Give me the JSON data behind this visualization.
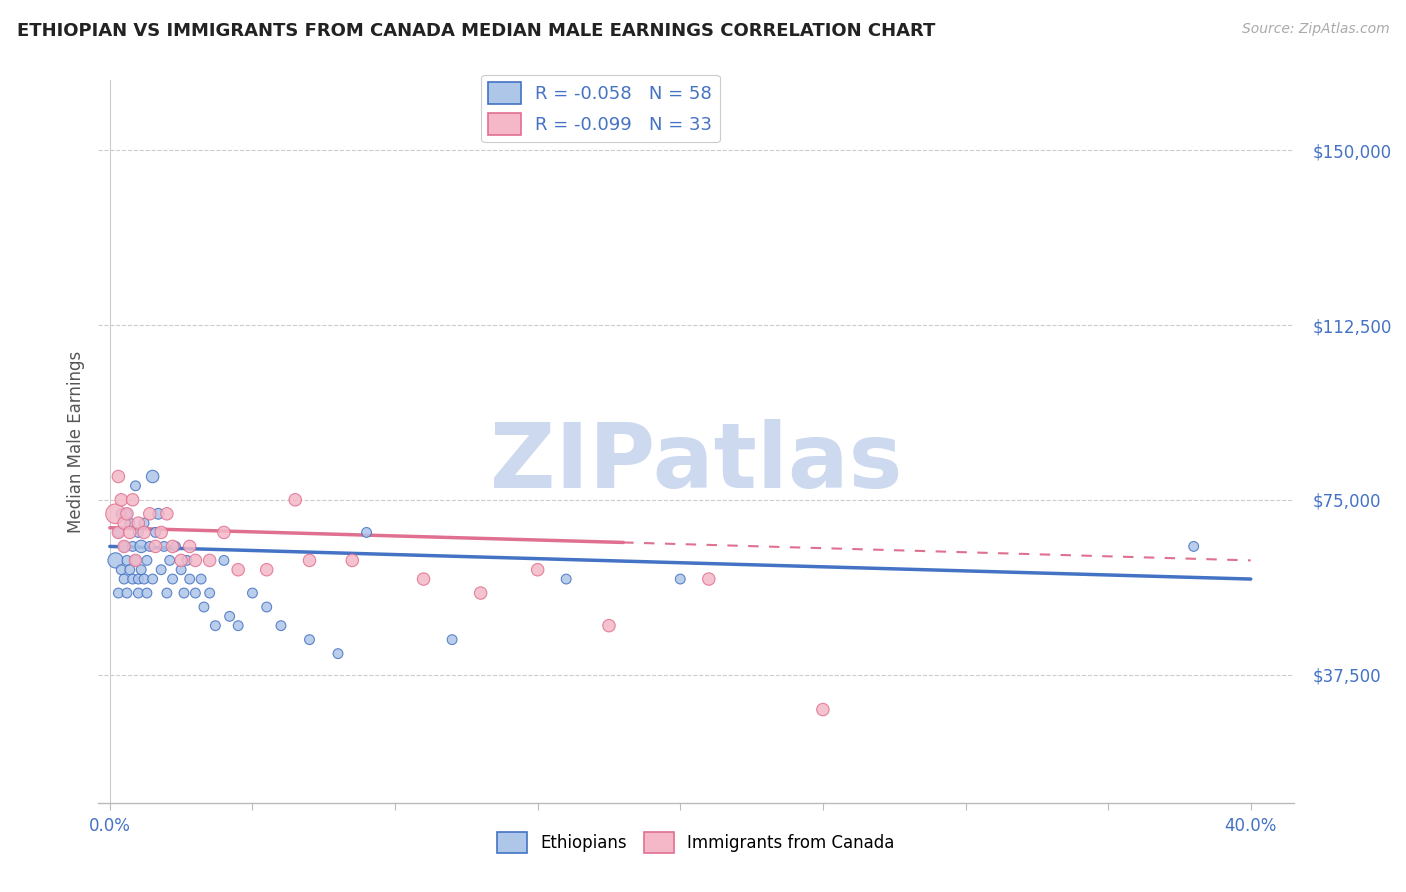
{
  "title": "ETHIOPIAN VS IMMIGRANTS FROM CANADA MEDIAN MALE EARNINGS CORRELATION CHART",
  "source": "Source: ZipAtlas.com",
  "ylabel": "Median Male Earnings",
  "ytick_labels": [
    "$37,500",
    "$75,000",
    "$112,500",
    "$150,000"
  ],
  "ytick_values": [
    37500,
    75000,
    112500,
    150000
  ],
  "ylim": [
    10000,
    165000
  ],
  "xlim": [
    -0.004,
    0.415
  ],
  "r1": "-0.058",
  "n1": "58",
  "r2": "-0.099",
  "n2": "33",
  "legend1_face": "#aec6e8",
  "legend1_edge": "#4472c4",
  "legend2_face": "#f4b8c8",
  "legend2_edge": "#e07090",
  "line1_color": "#4472c4",
  "line2_color": "#e07090",
  "title_color": "#222222",
  "axis_label_color": "#4472c4",
  "watermark": "ZIPatlas",
  "watermark_color": "#ccd9ef",
  "ethiopians_x": [
    0.002,
    0.003,
    0.003,
    0.004,
    0.004,
    0.005,
    0.005,
    0.006,
    0.006,
    0.006,
    0.007,
    0.007,
    0.008,
    0.008,
    0.009,
    0.009,
    0.01,
    0.01,
    0.01,
    0.011,
    0.011,
    0.012,
    0.012,
    0.013,
    0.013,
    0.014,
    0.015,
    0.015,
    0.016,
    0.017,
    0.018,
    0.019,
    0.02,
    0.021,
    0.022,
    0.023,
    0.025,
    0.026,
    0.027,
    0.028,
    0.03,
    0.032,
    0.033,
    0.035,
    0.037,
    0.04,
    0.042,
    0.045,
    0.05,
    0.055,
    0.06,
    0.07,
    0.08,
    0.09,
    0.12,
    0.16,
    0.2,
    0.38
  ],
  "ethiopians_y": [
    62000,
    68000,
    55000,
    72000,
    60000,
    65000,
    58000,
    72000,
    62000,
    55000,
    70000,
    60000,
    65000,
    58000,
    78000,
    62000,
    68000,
    58000,
    55000,
    65000,
    60000,
    70000,
    58000,
    62000,
    55000,
    65000,
    80000,
    58000,
    68000,
    72000,
    60000,
    65000,
    55000,
    62000,
    58000,
    65000,
    60000,
    55000,
    62000,
    58000,
    55000,
    58000,
    52000,
    55000,
    48000,
    62000,
    50000,
    48000,
    55000,
    52000,
    48000,
    45000,
    42000,
    68000,
    45000,
    58000,
    58000,
    65000
  ],
  "ethiopians_size": [
    120,
    50,
    50,
    50,
    50,
    50,
    50,
    50,
    50,
    50,
    50,
    50,
    50,
    50,
    50,
    50,
    50,
    50,
    50,
    80,
    50,
    50,
    50,
    50,
    50,
    50,
    80,
    50,
    50,
    60,
    50,
    50,
    50,
    50,
    50,
    50,
    50,
    50,
    50,
    50,
    50,
    50,
    50,
    50,
    50,
    50,
    50,
    50,
    50,
    50,
    50,
    50,
    50,
    50,
    50,
    50,
    50,
    50
  ],
  "canada_x": [
    0.002,
    0.003,
    0.003,
    0.004,
    0.005,
    0.005,
    0.006,
    0.007,
    0.008,
    0.009,
    0.01,
    0.012,
    0.014,
    0.016,
    0.018,
    0.02,
    0.022,
    0.025,
    0.028,
    0.03,
    0.035,
    0.04,
    0.045,
    0.055,
    0.065,
    0.07,
    0.085,
    0.11,
    0.13,
    0.15,
    0.175,
    0.21,
    0.25
  ],
  "canada_y": [
    72000,
    80000,
    68000,
    75000,
    70000,
    65000,
    72000,
    68000,
    75000,
    62000,
    70000,
    68000,
    72000,
    65000,
    68000,
    72000,
    65000,
    62000,
    65000,
    62000,
    62000,
    68000,
    60000,
    60000,
    75000,
    62000,
    62000,
    58000,
    55000,
    60000,
    48000,
    58000,
    30000
  ],
  "canada_size": [
    200,
    80,
    80,
    80,
    80,
    80,
    80,
    80,
    80,
    80,
    80,
    80,
    80,
    80,
    80,
    80,
    80,
    80,
    80,
    80,
    80,
    80,
    80,
    80,
    80,
    80,
    80,
    80,
    80,
    80,
    80,
    80,
    80
  ],
  "line1_x0": 0.0,
  "line1_y0": 65000,
  "line1_x1": 0.4,
  "line1_y1": 58000,
  "line2_x0": 0.0,
  "line2_y0": 69000,
  "line2_x1": 0.4,
  "line2_y1": 62000
}
